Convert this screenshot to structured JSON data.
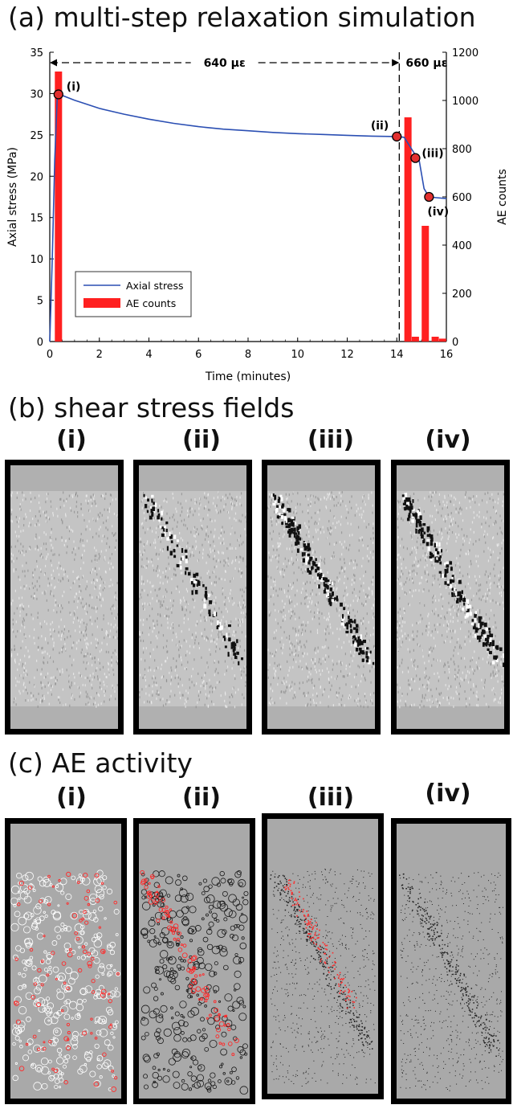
{
  "titles": {
    "a": "(a) multi-step relaxation simulation",
    "b": "(b) shear stress fields",
    "c": "(c) AE activity"
  },
  "panel_labels": [
    "(i)",
    "(ii)",
    "(iii)",
    "(iv)"
  ],
  "chart_data": {
    "type": "line",
    "title": "(a) multi-step relaxation simulation",
    "xlabel": "Time (minutes)",
    "ylabel": "Axial stress (MPa)",
    "y2label": "AE counts",
    "xlim": [
      0,
      16
    ],
    "ylim": [
      0,
      35
    ],
    "y2lim": [
      0,
      1200
    ],
    "xticks": [
      0,
      2,
      4,
      6,
      8,
      10,
      12,
      14,
      16
    ],
    "yticks": [
      0,
      5,
      10,
      15,
      20,
      25,
      30,
      35
    ],
    "y2ticks": [
      0,
      200,
      400,
      600,
      800,
      1000,
      1200
    ],
    "series": [
      {
        "name": "Axial stress",
        "axis": "left",
        "color": "#2b4fb3",
        "x": [
          0,
          0.1,
          0.2,
          0.3,
          0.4,
          1,
          2,
          3,
          4,
          5,
          6,
          7,
          8,
          9,
          10,
          11,
          12,
          13,
          14.0,
          14.05,
          14.3,
          14.7,
          14.9,
          15.1,
          15.3,
          15.6,
          16.0
        ],
        "y": [
          0,
          10,
          22,
          29.5,
          29.9,
          29.2,
          28.2,
          27.5,
          26.9,
          26.4,
          26.0,
          25.7,
          25.5,
          25.3,
          25.15,
          25.05,
          24.95,
          24.85,
          24.8,
          24.8,
          24.7,
          22.8,
          22.0,
          18.5,
          17.5,
          17.4,
          17.3
        ]
      },
      {
        "name": "AE counts",
        "axis": "right",
        "type": "bar",
        "color": "#ff2020",
        "x": [
          0.35,
          14.45,
          14.75,
          15.15,
          15.55,
          15.85
        ],
        "values": [
          1120,
          930,
          20,
          480,
          20,
          12
        ]
      }
    ],
    "markers": [
      {
        "label": "(i)",
        "x": 0.35,
        "y": 29.9
      },
      {
        "label": "(ii)",
        "x": 14.0,
        "y": 24.8
      },
      {
        "label": "(iii)",
        "x": 14.75,
        "y": 22.2
      },
      {
        "label": "(iv)",
        "x": 15.3,
        "y": 17.5
      }
    ],
    "step_divider_x": 14.1,
    "annotations": [
      {
        "text": "640 µε",
        "x_from": 0,
        "x_to": 14.1
      },
      {
        "text": "660 µε",
        "x_from": 14.1,
        "x_to": 16
      }
    ],
    "legend": {
      "placement": "bottom-left",
      "entries": [
        "Axial stress",
        "AE counts"
      ]
    },
    "grid": false
  },
  "colors": {
    "stress_line": "#2b4fb3",
    "ae_bar": "#ff2020",
    "marker_fill": "#e23030",
    "field_gray": "#b8b8b8",
    "ae_background": "#a9a9a9"
  }
}
